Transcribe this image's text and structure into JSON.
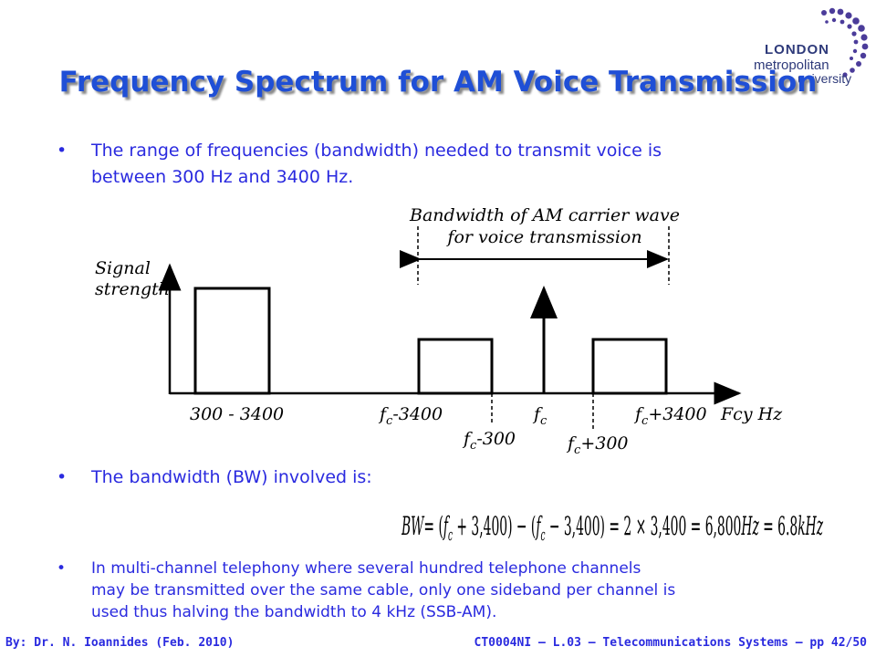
{
  "title": "Frequency Spectrum for AM Voice Transmission",
  "logo": {
    "line1": "LONDON",
    "line2": "metropolitan",
    "line3": "university",
    "accent": "#4b3c9a"
  },
  "bullets": [
    {
      "marker": "•",
      "lines": [
        "The range of frequencies (bandwidth) needed to transmit voice is",
        "between 300 Hz and 3400 Hz."
      ]
    },
    {
      "marker": "•",
      "lines": [
        "The bandwidth (BW) involved is:"
      ]
    },
    {
      "marker": "•",
      "lines": [
        "In multi-channel telephony where several hundred telephone channels",
        "may be transmitted over the same cable, only one sideband per channel is",
        "used thus halving the bandwidth to 4 kHz (SSB-AM)."
      ]
    }
  ],
  "diagram": {
    "bandwidth_label": [
      "Bandwidth of AM carrier wave",
      "for voice transmission"
    ],
    "y_label": [
      "Signal",
      "strength"
    ],
    "x_axis_label": "Fcy Hz",
    "tick_baseband": "300 - 3400",
    "tick_lsb_outer": {
      "base": "f",
      "sub": "c",
      "rest": "-3400"
    },
    "tick_lsb_inner": {
      "base": "f",
      "sub": "c",
      "rest": "-300"
    },
    "tick_carrier": {
      "base": "f",
      "sub": "c",
      "rest": ""
    },
    "tick_usb_inner": {
      "base": "f",
      "sub": "c",
      "rest": "+300"
    },
    "tick_usb_outer": {
      "base": "f",
      "sub": "c",
      "rest": "+3400"
    }
  },
  "equation": {
    "lhs": "BW",
    "p1": "= (",
    "f1": "f",
    "s1": "c",
    "p2": " + 3,400) − (",
    "f2": "f",
    "s2": "c",
    "p3": " − 3,400) = 2 × 3,400 = 6,800",
    "unit1": "Hz",
    "p4": " = 6.8",
    "unit2": "kHz"
  },
  "footer": {
    "left": "By: Dr. N. Ioannides (Feb. 2010)",
    "right": "CT0004NI – L.03 – Telecommunications Systems – pp 42/50"
  }
}
